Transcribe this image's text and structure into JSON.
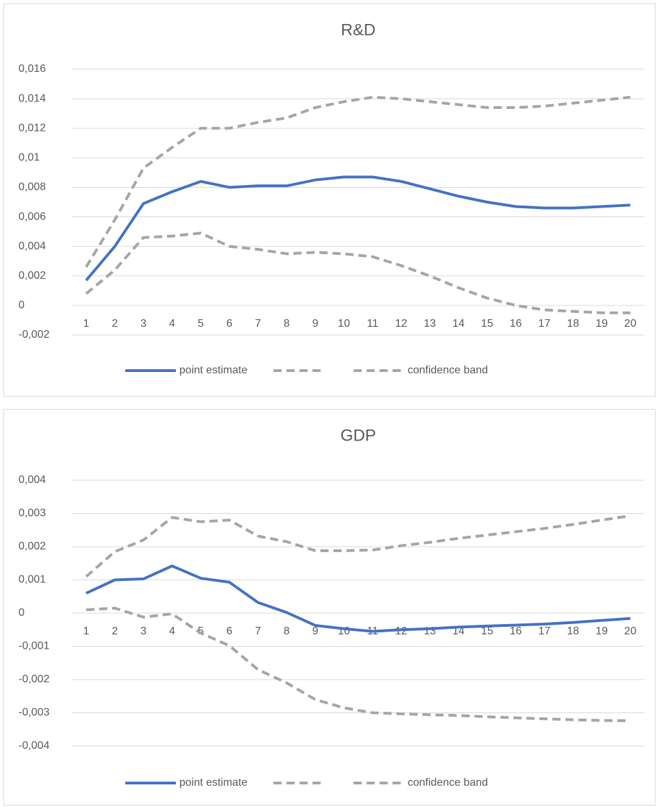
{
  "chart_data": [
    {
      "type": "line",
      "title": "R&D",
      "categories": [
        "1",
        "2",
        "3",
        "4",
        "5",
        "6",
        "7",
        "8",
        "9",
        "10",
        "11",
        "12",
        "13",
        "14",
        "15",
        "16",
        "17",
        "18",
        "19",
        "20"
      ],
      "ylim": [
        -0.002,
        0.016
      ],
      "yticks": [
        {
          "value": -0.002,
          "label": "-0,002"
        },
        0,
        {
          "value": 0.002,
          "label": "0,002"
        },
        {
          "value": 0.004,
          "label": "0,004"
        },
        {
          "value": 0.006,
          "label": "0,006"
        },
        {
          "value": 0.008,
          "label": "0,008"
        },
        {
          "value": 0.01,
          "label": "0,01"
        },
        {
          "value": 0.012,
          "label": "0,012"
        },
        {
          "value": 0.014,
          "label": "0,014"
        },
        {
          "value": 0.016,
          "label": "0,016"
        }
      ],
      "grid": true,
      "legend": "bottom",
      "series": [
        {
          "name": "point estimate",
          "color": "#4472c4",
          "dash": false,
          "values": [
            0.0017,
            0.004,
            0.0069,
            0.0077,
            0.0084,
            0.008,
            0.0081,
            0.0081,
            0.0085,
            0.0087,
            0.0087,
            0.0084,
            0.0079,
            0.0074,
            0.007,
            0.0067,
            0.0066,
            0.0066,
            0.0067,
            0.0068
          ]
        },
        {
          "color": "#a5a5a5",
          "dash": true,
          "values": [
            0.0026,
            0.0058,
            0.0093,
            0.0107,
            0.012,
            0.012,
            0.0124,
            0.0127,
            0.0134,
            0.0138,
            0.0141,
            0.014,
            0.0138,
            0.0136,
            0.0134,
            0.0134,
            0.0135,
            0.0137,
            0.0139,
            0.0141
          ]
        },
        {
          "name": "confidence band",
          "color": "#a5a5a5",
          "dash": true,
          "values": [
            0.0008,
            0.0024,
            0.0046,
            0.0047,
            0.0049,
            0.004,
            0.0038,
            0.0035,
            0.0036,
            0.0035,
            0.0033,
            0.0027,
            0.002,
            0.0012,
            0.0005,
            0.0,
            -0.0003,
            -0.0004,
            -0.0005,
            -0.0005
          ]
        }
      ]
    },
    {
      "type": "line",
      "title": "GDP",
      "categories": [
        "1",
        "2",
        "3",
        "4",
        "5",
        "6",
        "7",
        "8",
        "9",
        "10",
        "11",
        "12",
        "13",
        "14",
        "15",
        "16",
        "17",
        "18",
        "19",
        "20"
      ],
      "ylim": [
        -0.004,
        0.004
      ],
      "yticks": [
        {
          "value": -0.004,
          "label": "-0,004"
        },
        {
          "value": -0.003,
          "label": "-0,003"
        },
        {
          "value": -0.002,
          "label": "-0,002"
        },
        {
          "value": -0.001,
          "label": "-0,001"
        },
        0,
        {
          "value": 0.001,
          "label": "0,001"
        },
        {
          "value": 0.002,
          "label": "0,002"
        },
        {
          "value": 0.003,
          "label": "0,003"
        },
        {
          "value": 0.004,
          "label": "0,004"
        }
      ],
      "grid": true,
      "legend": "bottom",
      "series": [
        {
          "name": "point estimate",
          "color": "#4472c4",
          "dash": false,
          "values": [
            0.0006,
            0.001,
            0.00103,
            0.00142,
            0.00105,
            0.00093,
            0.00032,
            2e-05,
            -0.00037,
            -0.00047,
            -0.00055,
            -0.0005,
            -0.00047,
            -0.00042,
            -0.00039,
            -0.00036,
            -0.00033,
            -0.00028,
            -0.00022,
            -0.00016
          ]
        },
        {
          "color": "#a5a5a5",
          "dash": true,
          "values": [
            0.0011,
            0.00185,
            0.0022,
            0.00288,
            0.00275,
            0.0028,
            0.00232,
            0.00215,
            0.00188,
            0.00188,
            0.0019,
            0.00203,
            0.00213,
            0.00225,
            0.00235,
            0.00245,
            0.00255,
            0.00267,
            0.0028,
            0.00293
          ]
        },
        {
          "name": "confidence band",
          "color": "#a5a5a5",
          "dash": true,
          "values": [
            0.0001,
            0.00015,
            -0.00012,
            -2e-05,
            -0.0006,
            -0.00098,
            -0.0017,
            -0.0021,
            -0.0026,
            -0.00285,
            -0.003,
            -0.00303,
            -0.00306,
            -0.00308,
            -0.00312,
            -0.00315,
            -0.00318,
            -0.00321,
            -0.00323,
            -0.00324
          ]
        }
      ]
    }
  ]
}
